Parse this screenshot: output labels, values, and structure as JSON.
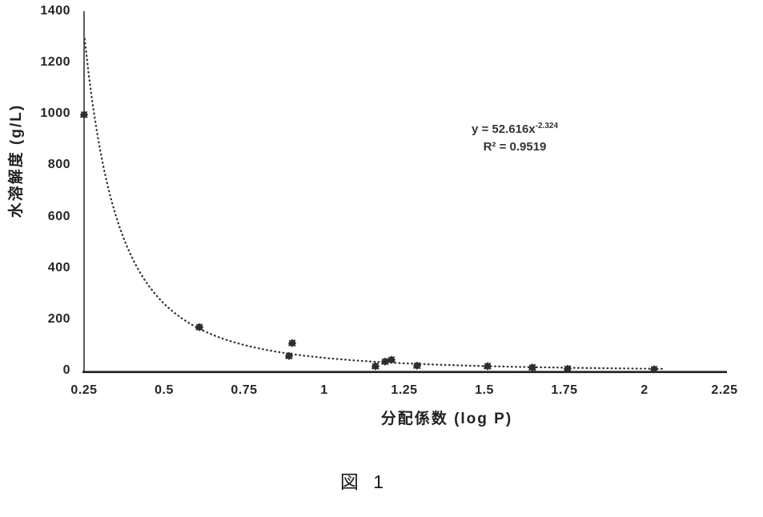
{
  "figure": {
    "caption": "図 1"
  },
  "colors": {
    "ink": "#262626",
    "axis": "#1d1d1d",
    "marker": "#2e2e2e",
    "trendline": "#333333"
  },
  "chart_data": {
    "type": "scatter",
    "title": "",
    "xlabel": "分配係数 (log P)",
    "ylabel": "水溶解度 (g/L)",
    "xlim": [
      0.25,
      2.25
    ],
    "ylim": [
      0,
      1400
    ],
    "grid": false,
    "legend_position": "none",
    "x_ticks": [
      0.25,
      0.5,
      0.75,
      1,
      1.25,
      1.5,
      1.75,
      2,
      2.25
    ],
    "x_tick_labels": [
      "0.25",
      "0.5",
      "0.75",
      "1",
      "1.25",
      "1.5",
      "1.75",
      "2",
      "2.25"
    ],
    "y_ticks": [
      0,
      200,
      400,
      600,
      800,
      1000,
      1200,
      1400
    ],
    "y_tick_labels": [
      "0",
      "200",
      "400",
      "600",
      "800",
      "1000",
      "1200",
      "1400"
    ],
    "points": [
      {
        "x": 0.25,
        "y": 1000
      },
      {
        "x": 0.61,
        "y": 172
      },
      {
        "x": 0.9,
        "y": 110
      },
      {
        "x": 0.89,
        "y": 60
      },
      {
        "x": 1.16,
        "y": 20
      },
      {
        "x": 1.19,
        "y": 38
      },
      {
        "x": 1.21,
        "y": 45
      },
      {
        "x": 1.29,
        "y": 22
      },
      {
        "x": 1.51,
        "y": 20
      },
      {
        "x": 1.65,
        "y": 15
      },
      {
        "x": 1.76,
        "y": 10
      },
      {
        "x": 2.03,
        "y": 8
      }
    ],
    "trendline": {
      "kind": "power",
      "a": 52.616,
      "b": -2.324,
      "x_start": 0.252,
      "x_end": 2.06,
      "style": "dotted"
    },
    "annotation": {
      "equation_prefix": "y = 52.616x",
      "equation_exponent": "-2.324",
      "r_squared": "R² = 0.9519"
    }
  }
}
